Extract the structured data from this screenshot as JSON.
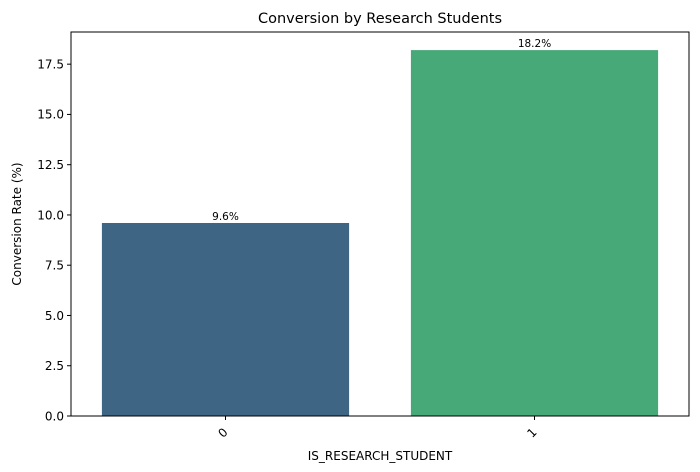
{
  "chart_data": {
    "type": "bar",
    "title": "Conversion by Research Students",
    "xlabel": "IS_RESEARCH_STUDENT",
    "ylabel": "Conversion Rate (%)",
    "categories": [
      "0",
      "1"
    ],
    "values": [
      9.6,
      18.2
    ],
    "value_labels": [
      "9.6%",
      "18.2%"
    ],
    "colors": [
      "#3e6584",
      "#47a878"
    ],
    "ylim": [
      0,
      19.1
    ],
    "yticks": [
      0.0,
      2.5,
      5.0,
      7.5,
      10.0,
      12.5,
      15.0,
      17.5
    ],
    "ytick_labels": [
      "0.0",
      "2.5",
      "5.0",
      "7.5",
      "10.0",
      "12.5",
      "15.0",
      "17.5"
    ],
    "xtick_rotation": 45,
    "grid": false,
    "legend": "none"
  }
}
